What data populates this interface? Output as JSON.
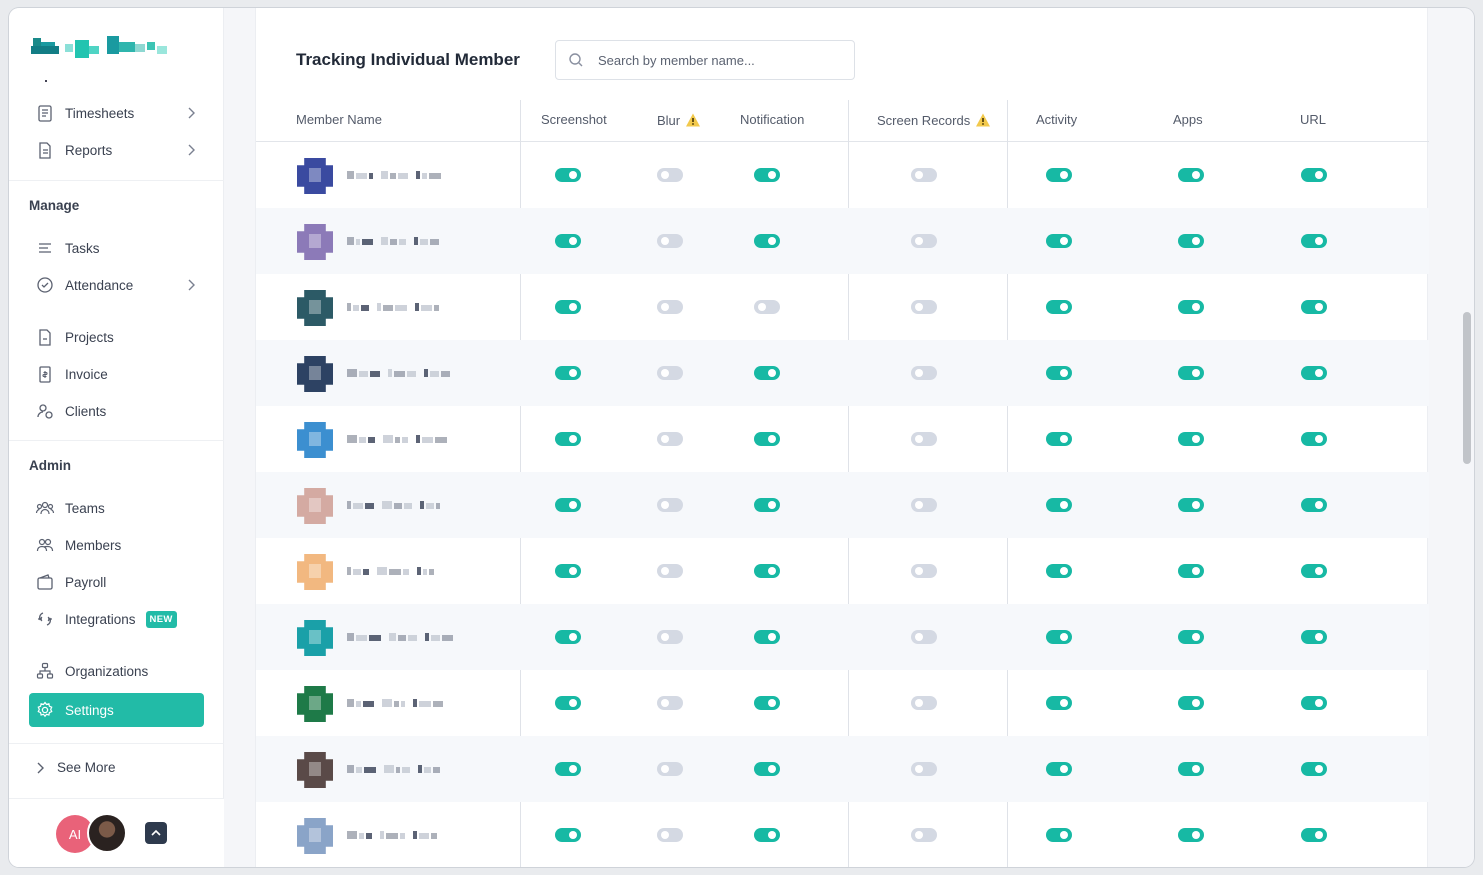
{
  "sidebar": {
    "items_top": [
      {
        "label": "Timesheets",
        "icon": "timesheet-icon",
        "chevron": true
      },
      {
        "label": "Reports",
        "icon": "report-icon",
        "chevron": true
      }
    ],
    "manage_label": "Manage",
    "manage_items": [
      {
        "label": "Tasks",
        "icon": "tasks-icon",
        "chevron": false
      },
      {
        "label": "Attendance",
        "icon": "attendance-icon",
        "chevron": true
      },
      {
        "label": "Projects",
        "icon": "projects-icon",
        "chevron": false
      },
      {
        "label": "Invoice",
        "icon": "invoice-icon",
        "chevron": false
      },
      {
        "label": "Clients",
        "icon": "clients-icon",
        "chevron": false
      }
    ],
    "admin_label": "Admin",
    "admin_items": [
      {
        "label": "Teams",
        "icon": "teams-icon"
      },
      {
        "label": "Members",
        "icon": "members-icon"
      },
      {
        "label": "Payroll",
        "icon": "payroll-icon"
      },
      {
        "label": "Integrations",
        "icon": "integrations-icon",
        "badge": "NEW"
      },
      {
        "label": "Organizations",
        "icon": "organizations-icon"
      },
      {
        "label": "Settings",
        "icon": "settings-icon",
        "active": true
      }
    ],
    "see_more": "See More",
    "user_initials": "AI"
  },
  "main": {
    "title": "Tracking Individual Member",
    "search_placeholder": "Search by member name...",
    "columns": [
      "Member Name",
      "Screenshot",
      "Blur",
      "Notification",
      "Screen Records",
      "Activity",
      "Apps",
      "URL"
    ],
    "warn_columns": [
      "Blur",
      "Screen Records"
    ],
    "rows": [
      {
        "avatar": "#3a4aa0",
        "toggles": [
          true,
          false,
          true,
          false,
          true,
          true,
          true
        ]
      },
      {
        "avatar": "#8c7ab8",
        "toggles": [
          true,
          false,
          true,
          false,
          true,
          true,
          true
        ]
      },
      {
        "avatar": "#2c5a66",
        "toggles": [
          true,
          false,
          false,
          false,
          true,
          true,
          true
        ]
      },
      {
        "avatar": "#2d4263",
        "toggles": [
          true,
          false,
          true,
          false,
          true,
          true,
          true
        ]
      },
      {
        "avatar": "#3c8fd0",
        "toggles": [
          true,
          false,
          true,
          false,
          true,
          true,
          true
        ]
      },
      {
        "avatar": "#d4aaa2",
        "toggles": [
          true,
          false,
          true,
          false,
          true,
          true,
          true
        ]
      },
      {
        "avatar": "#f2b880",
        "toggles": [
          true,
          false,
          true,
          false,
          true,
          true,
          true
        ]
      },
      {
        "avatar": "#1aa0a8",
        "toggles": [
          true,
          false,
          true,
          false,
          true,
          true,
          true
        ]
      },
      {
        "avatar": "#1e7a48",
        "toggles": [
          true,
          false,
          true,
          false,
          true,
          true,
          true
        ]
      },
      {
        "avatar": "#5a4a48",
        "toggles": [
          true,
          false,
          true,
          false,
          true,
          true,
          true
        ]
      },
      {
        "avatar": "#8aa4c8",
        "toggles": [
          true,
          false,
          true,
          false,
          true,
          true,
          true
        ]
      }
    ]
  },
  "colors": {
    "accent": "#22bba7",
    "toggle_on": "#17b9a4",
    "toggle_off": "#d4d9e3",
    "warning": "#f2c94c"
  }
}
